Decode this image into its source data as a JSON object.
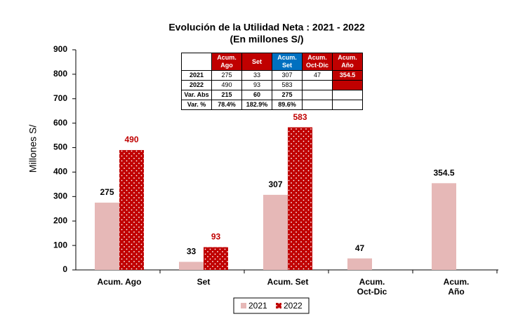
{
  "chart_data": {
    "type": "bar",
    "title": "Evolución de la Utilidad Neta : 2021 - 2022",
    "subtitle": "(En millones S/)",
    "y_label": "Millones S/",
    "categories": [
      "Acum. Ago",
      "Set",
      "Acum. Set",
      "Acum.\nOct-Dic",
      "Acum.\nAño"
    ],
    "series": [
      {
        "name": "2021",
        "color": "#e6b8b7",
        "label_color": "#000000",
        "values": [
          275,
          33,
          307,
          47,
          354.5
        ]
      },
      {
        "name": "2022",
        "color": "#c00000",
        "label_color": "#c00000",
        "pattern": "dots",
        "values": [
          490,
          93,
          583,
          null,
          null
        ]
      }
    ],
    "ylim": [
      0,
      900
    ],
    "yticks": [
      0,
      100,
      200,
      300,
      400,
      500,
      600,
      700,
      800,
      900
    ],
    "grid": false,
    "legend": "bottom",
    "table": {
      "columns": [
        "Acum.\nAgo",
        "Set",
        "Acum.\nSet",
        "Acum.\nOct-Dic",
        "Acum.\nAño"
      ],
      "rows": [
        {
          "label": "2021",
          "cells": [
            "275",
            "33",
            "307",
            "47",
            "354.5"
          ]
        },
        {
          "label": "2022",
          "cells": [
            "490",
            "93",
            "583",
            null,
            null
          ]
        },
        {
          "label": "Var. Abs",
          "cells": [
            "215",
            "60",
            "275",
            null,
            null
          ]
        },
        {
          "label": "Var. %",
          "cells": [
            "78.4%",
            "182.9%",
            "89.6%",
            null,
            null
          ]
        }
      ]
    }
  }
}
